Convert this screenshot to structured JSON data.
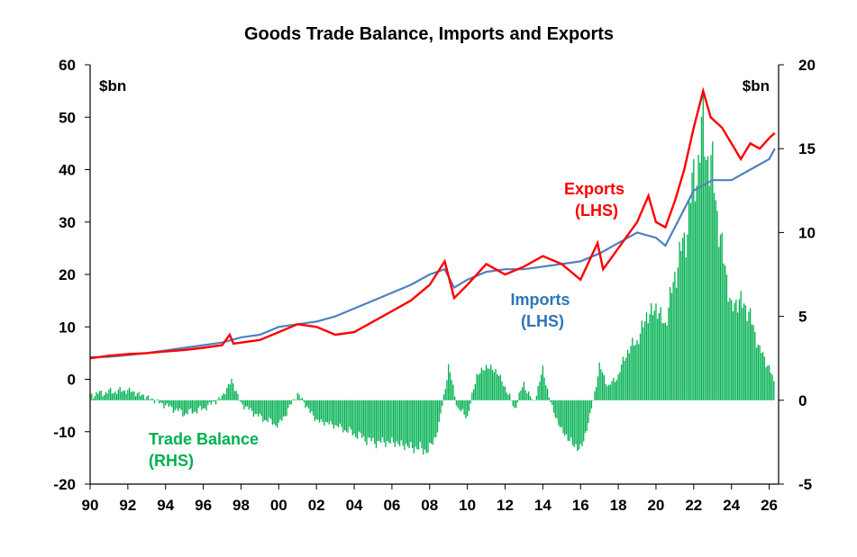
{
  "chart_data": {
    "type": "line",
    "title": "Goods Trade Balance, Imports and Exports",
    "left_axis": {
      "unit": "$bn",
      "ylim": [
        -20,
        60
      ],
      "ticks": [
        60,
        50,
        40,
        30,
        20,
        10,
        0,
        -10,
        -20
      ]
    },
    "right_axis": {
      "unit": "$bn",
      "ylim": [
        -5,
        20
      ],
      "ticks": [
        20,
        15,
        10,
        5,
        0,
        -5
      ]
    },
    "x_axis": {
      "xlim": [
        1990,
        2026.5
      ],
      "tick_labels": [
        "90",
        "92",
        "94",
        "96",
        "98",
        "00",
        "02",
        "04",
        "06",
        "08",
        "10",
        "12",
        "14",
        "16",
        "18",
        "20",
        "22",
        "24",
        "26"
      ]
    },
    "colors": {
      "exports": "#ff0000",
      "imports": "#4f81bd",
      "balance": "#00b050"
    },
    "grid": false,
    "annotations": [
      {
        "lines": [
          "Exports",
          "(LHS)"
        ],
        "color": "#ff0000"
      },
      {
        "lines": [
          "Imports",
          "(LHS)"
        ],
        "color": "#2e75b6"
      },
      {
        "lines": [
          "Trade Balance",
          "(RHS)"
        ],
        "color": "#00b050"
      }
    ],
    "series": [
      {
        "name": "Exports",
        "axis": "left",
        "type": "line",
        "x": [
          1990,
          1991,
          1992,
          1993,
          1994,
          1995,
          1996,
          1997,
          1997.4,
          1997.6,
          1998,
          1999,
          2000,
          2001,
          2002,
          2003,
          2004,
          2005,
          2006,
          2007,
          2008,
          2008.8,
          2009.3,
          2010,
          2011,
          2012,
          2013,
          2014,
          2015,
          2016,
          2016.9,
          2017.2,
          2018,
          2019,
          2019.6,
          2020,
          2020.5,
          2021,
          2021.5,
          2022,
          2022.5,
          2022.9,
          2023.5,
          2024,
          2024.5,
          2025,
          2025.5,
          2026,
          2026.3
        ],
        "y": [
          4,
          4.5,
          4.8,
          5,
          5.3,
          5.6,
          6,
          6.5,
          8.5,
          6.8,
          7,
          7.5,
          9,
          10.5,
          10,
          8.5,
          9,
          11,
          13,
          15,
          18,
          22.5,
          15.5,
          18,
          22,
          20,
          21.5,
          23.5,
          22,
          19,
          26,
          21,
          25,
          30,
          35,
          30,
          29,
          34,
          40,
          48,
          55,
          50,
          48,
          45,
          42,
          45,
          44,
          46,
          47
        ]
      },
      {
        "name": "Imports",
        "axis": "left",
        "type": "line",
        "x": [
          1990,
          1991,
          1992,
          1993,
          1994,
          1995,
          1996,
          1997,
          1998,
          1999,
          2000,
          2001,
          2002,
          2003,
          2004,
          2005,
          2006,
          2007,
          2008,
          2008.8,
          2009.3,
          2010,
          2011,
          2012,
          2013,
          2014,
          2015,
          2016,
          2017,
          2018,
          2019,
          2020,
          2020.5,
          2021,
          2022,
          2023,
          2024,
          2025,
          2026,
          2026.3
        ],
        "y": [
          4.2,
          4.3,
          4.6,
          5,
          5.5,
          6,
          6.5,
          7,
          8,
          8.5,
          10,
          10.5,
          11,
          12,
          13.5,
          15,
          16.5,
          18,
          20,
          21,
          17.5,
          19,
          20.5,
          21,
          21,
          21.5,
          22,
          22.5,
          24,
          26,
          28,
          27,
          25.5,
          29,
          36,
          38,
          38,
          40,
          42,
          44
        ]
      },
      {
        "name": "Trade Balance",
        "axis": "right",
        "type": "bar",
        "x": [
          1990,
          1991,
          1992,
          1993,
          1994,
          1995,
          1996,
          1997,
          1997.5,
          1998,
          1999,
          2000,
          2001,
          2002,
          2003,
          2004,
          2005,
          2006,
          2007,
          2008,
          2008.5,
          2009,
          2009.5,
          2010,
          2010.5,
          2011,
          2011.5,
          2012,
          2012.5,
          2013,
          2013.5,
          2014,
          2014.5,
          2015,
          2015.5,
          2016,
          2016.5,
          2017,
          2017.5,
          2018,
          2018.5,
          2019,
          2019.5,
          2020,
          2020.5,
          2021,
          2021.5,
          2022,
          2022.5,
          2023,
          2023.5,
          2024,
          2024.5,
          2025,
          2025.5,
          2026,
          2026.3
        ],
        "y": [
          0.3,
          0.5,
          0.6,
          0.2,
          -0.3,
          -0.8,
          -0.5,
          0.2,
          1.2,
          -0.2,
          -1,
          -1.5,
          0.4,
          -1.2,
          -1.5,
          -2,
          -2.5,
          -2.5,
          -2.8,
          -3,
          -1.5,
          2,
          -0.5,
          -1,
          1.5,
          2,
          1.8,
          0.8,
          -0.5,
          1,
          -0.2,
          1.8,
          -0.5,
          -1.8,
          -2.5,
          -3,
          -1,
          2,
          0.8,
          1.5,
          3,
          3.5,
          5,
          5.5,
          4.5,
          7.5,
          9.5,
          13,
          16,
          13.5,
          9,
          5.5,
          6,
          5,
          3,
          2,
          0.8
        ]
      }
    ]
  }
}
